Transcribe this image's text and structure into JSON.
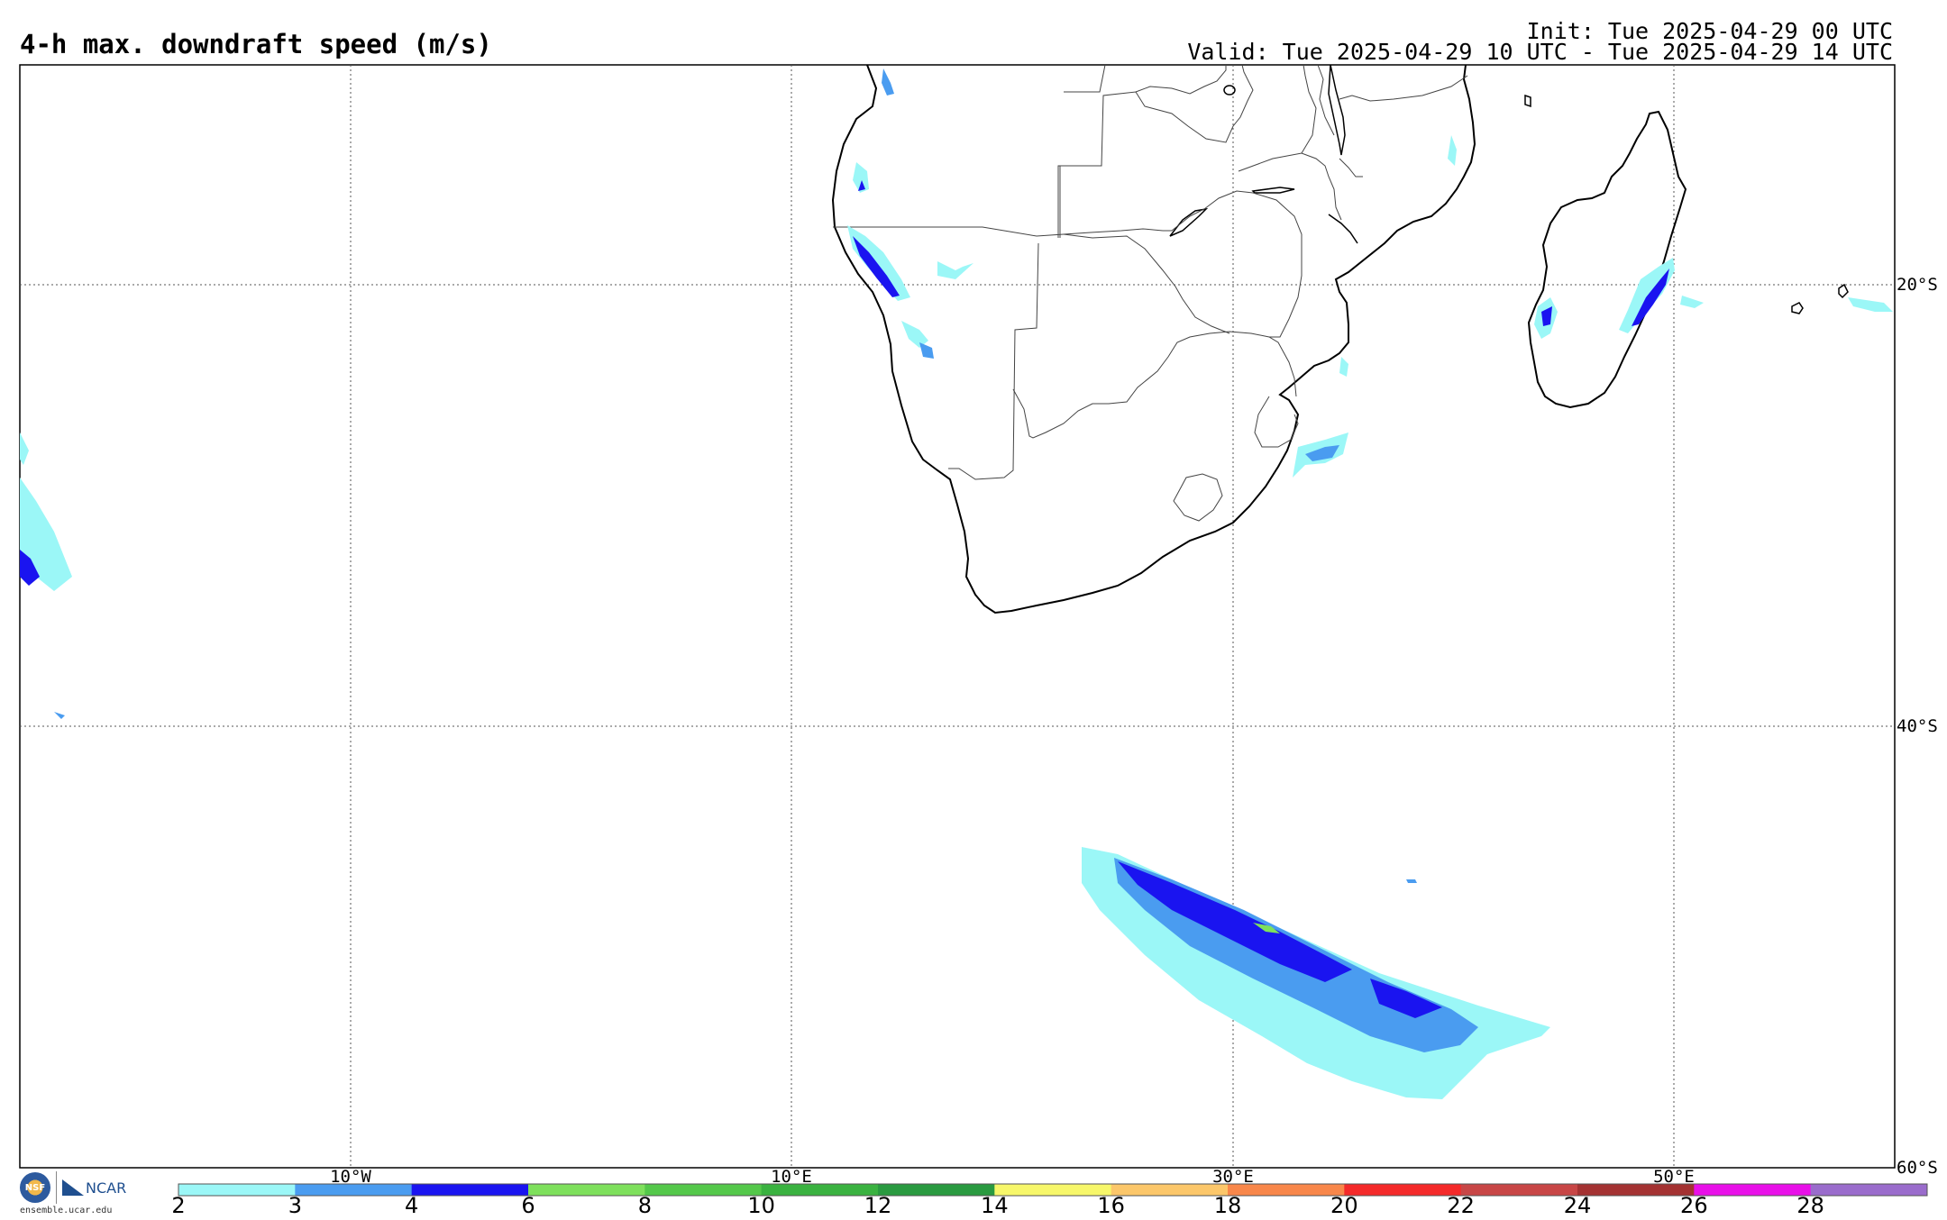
{
  "header": {
    "title": "4-h max. downdraft speed (m/s)",
    "init": "Init: Tue 2025-04-29 00 UTC",
    "valid": "Valid: Tue 2025-04-29 10 UTC - Tue 2025-04-29 14 UTC"
  },
  "map": {
    "lon_labels": [
      "10°W",
      "10°E",
      "30°E",
      "50°E"
    ],
    "lat_labels": [
      "20°S",
      "40°S",
      "60°S"
    ],
    "grid": "dotted"
  },
  "colorbar": {
    "ticks": [
      "2",
      "3",
      "4",
      "6",
      "8",
      "10",
      "12",
      "14",
      "16",
      "18",
      "20",
      "22",
      "24",
      "26",
      "28"
    ],
    "colors": [
      "#9bf7f7",
      "#4a9cf0",
      "#1a14f0",
      "#7ee05c",
      "#54c84a",
      "#3ab240",
      "#2a9a40",
      "#f7f76a",
      "#fcc76a",
      "#f8874a",
      "#f42a2a",
      "#c84646",
      "#a43232",
      "#e810e8",
      "#9a6ccc"
    ]
  },
  "logos": {
    "nsf": "NSF",
    "ncar": "NCAR",
    "site": "ensemble.ucar.edu"
  }
}
